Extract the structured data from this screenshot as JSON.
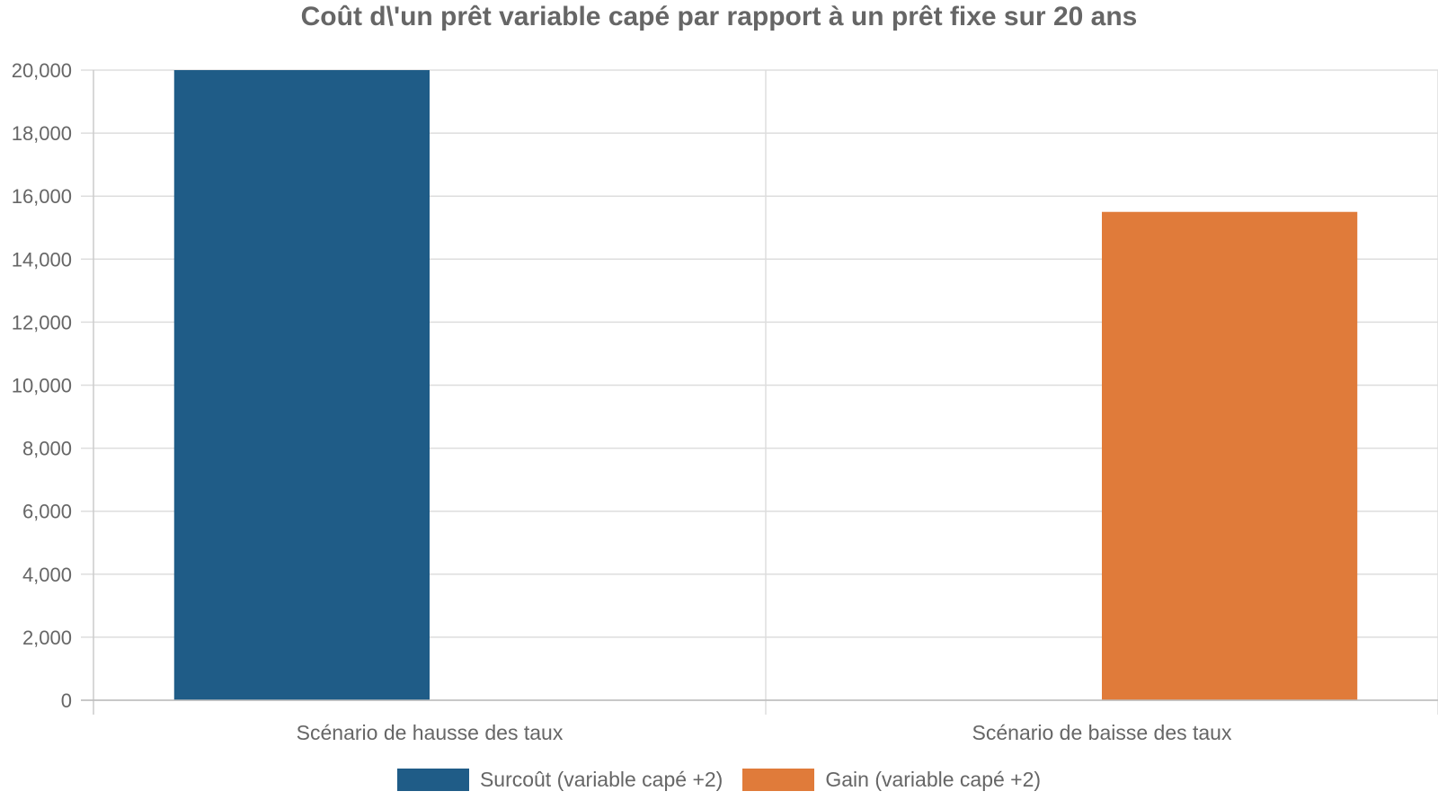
{
  "chart_data": {
    "type": "bar",
    "title": "Coût d\\'un prêt variable capé par rapport à un prêt fixe sur 20 ans",
    "categories": [
      "Scénario de hausse des taux",
      "Scénario de baisse des taux"
    ],
    "series": [
      {
        "name": "Surcoût (variable capé +2)",
        "values": [
          20000,
          null
        ],
        "color": "#1f5c87"
      },
      {
        "name": "Gain (variable capé +2)",
        "values": [
          null,
          15500
        ],
        "color": "#e07b3a"
      }
    ],
    "y_ticks": [
      "0",
      "2,000",
      "4,000",
      "6,000",
      "8,000",
      "10,000",
      "12,000",
      "14,000",
      "16,000",
      "18,000",
      "20,000"
    ],
    "ylim": [
      0,
      20000
    ],
    "xlabel": "",
    "ylabel": "",
    "grid": true,
    "legend_position": "bottom"
  }
}
